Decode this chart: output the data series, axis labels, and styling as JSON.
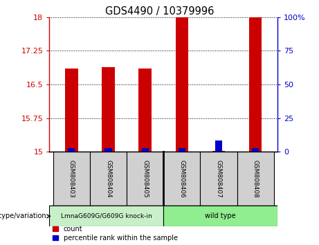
{
  "title": "GDS4490 / 10379996",
  "samples": [
    "GSM808403",
    "GSM808404",
    "GSM808405",
    "GSM808406",
    "GSM808407",
    "GSM808408"
  ],
  "red_bar_heights": [
    16.85,
    16.88,
    16.85,
    18.0,
    15.02,
    18.0
  ],
  "blue_bar_heights": [
    15.08,
    15.08,
    15.09,
    15.09,
    15.25,
    15.09
  ],
  "red_bar_bottom": 15.0,
  "ylim_left": [
    15.0,
    18.0
  ],
  "ylim_right": [
    0,
    100
  ],
  "yticks_left": [
    15,
    15.75,
    16.5,
    17.25,
    18
  ],
  "yticks_right": [
    0,
    25,
    50,
    75,
    100
  ],
  "ytick_labels_left": [
    "15",
    "15.75",
    "16.5",
    "17.25",
    "18"
  ],
  "ytick_labels_right": [
    "0",
    "25",
    "50",
    "75",
    "100%"
  ],
  "group_labels": [
    "LmnaG609G/G609G knock-in",
    "wild type"
  ],
  "group_color_left": "#c8f0c8",
  "group_color_right": "#90EE90",
  "bar_width": 0.35,
  "sample_box_color": "#d0d0d0",
  "red_color": "#cc0000",
  "blue_color": "#0000cc",
  "left_axis_color": "#cc0000",
  "right_axis_color": "#0000cc",
  "legend_items": [
    "count",
    "percentile rank within the sample"
  ],
  "n_group1": 3,
  "n_group2": 3
}
